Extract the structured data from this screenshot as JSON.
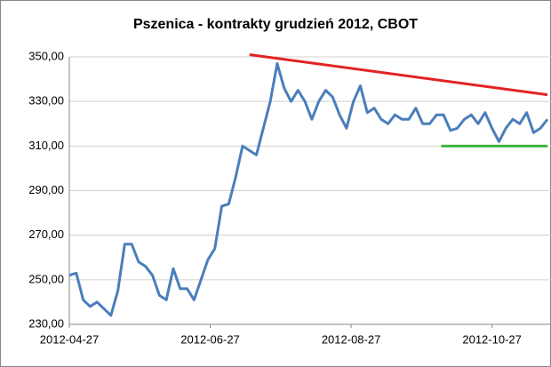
{
  "chart_data": {
    "type": "line",
    "title": "Pszenica - kontrakty grudzień 2012, CBOT",
    "x": [
      "2012-04-27",
      "2012-04-30",
      "2012-05-03",
      "2012-05-06",
      "2012-05-09",
      "2012-05-12",
      "2012-05-15",
      "2012-05-18",
      "2012-05-21",
      "2012-05-24",
      "2012-05-27",
      "2012-05-30",
      "2012-06-02",
      "2012-06-05",
      "2012-06-08",
      "2012-06-11",
      "2012-06-14",
      "2012-06-17",
      "2012-06-20",
      "2012-06-23",
      "2012-06-26",
      "2012-06-29",
      "2012-07-02",
      "2012-07-05",
      "2012-07-08",
      "2012-07-11",
      "2012-07-14",
      "2012-07-17",
      "2012-07-20",
      "2012-07-23",
      "2012-07-26",
      "2012-07-29",
      "2012-08-01",
      "2012-08-04",
      "2012-08-07",
      "2012-08-10",
      "2012-08-13",
      "2012-08-16",
      "2012-08-19",
      "2012-08-22",
      "2012-08-25",
      "2012-08-28",
      "2012-08-31",
      "2012-09-03",
      "2012-09-06",
      "2012-09-09",
      "2012-09-12",
      "2012-09-15",
      "2012-09-18",
      "2012-09-21",
      "2012-09-24",
      "2012-09-27",
      "2012-09-30",
      "2012-10-03",
      "2012-10-06",
      "2012-10-09",
      "2012-10-12",
      "2012-10-15",
      "2012-10-18",
      "2012-10-21",
      "2012-10-24",
      "2012-10-27",
      "2012-10-30",
      "2012-11-02",
      "2012-11-05",
      "2012-11-08",
      "2012-11-11",
      "2012-11-14",
      "2012-11-17",
      "2012-11-20"
    ],
    "series": [
      {
        "color": "#4a7ebb",
        "values": [
          252,
          253,
          241,
          238,
          240,
          237,
          234,
          245,
          266,
          266,
          258,
          256,
          252,
          243,
          241,
          255,
          246,
          246,
          241,
          250,
          259,
          264,
          283,
          284,
          296,
          310,
          308,
          306,
          318,
          330,
          347,
          336,
          330,
          335,
          330,
          322,
          330,
          335,
          332,
          324,
          318,
          330,
          337,
          325,
          327,
          322,
          320,
          324,
          322,
          322,
          327,
          320,
          320,
          324,
          324,
          317,
          318,
          322,
          324,
          320,
          325,
          318,
          312,
          318,
          322,
          320,
          325,
          316,
          318,
          322
        ]
      }
    ],
    "trend_lines": [
      {
        "color": "#e32222",
        "x": [
          "2012-07-14",
          "2012-11-20"
        ],
        "values": [
          351,
          333
        ]
      },
      {
        "color": "#3cb43c",
        "x": [
          "2012-10-05",
          "2012-11-20"
        ],
        "values": [
          310,
          310
        ]
      }
    ],
    "xlim": [
      "2012-04-27",
      "2012-11-20"
    ],
    "xticks": [
      "2012-04-27",
      "2012-06-27",
      "2012-08-27",
      "2012-10-27"
    ],
    "ylim": [
      230,
      350
    ],
    "yticks": [
      {
        "value": 230,
        "label": "230,00"
      },
      {
        "value": 250,
        "label": "250,00"
      },
      {
        "value": 270,
        "label": "270,00"
      },
      {
        "value": 290,
        "label": "290,00"
      },
      {
        "value": 310,
        "label": "310,00"
      },
      {
        "value": 330,
        "label": "330,00"
      },
      {
        "value": 350,
        "label": "350,00"
      }
    ],
    "grid": true
  }
}
